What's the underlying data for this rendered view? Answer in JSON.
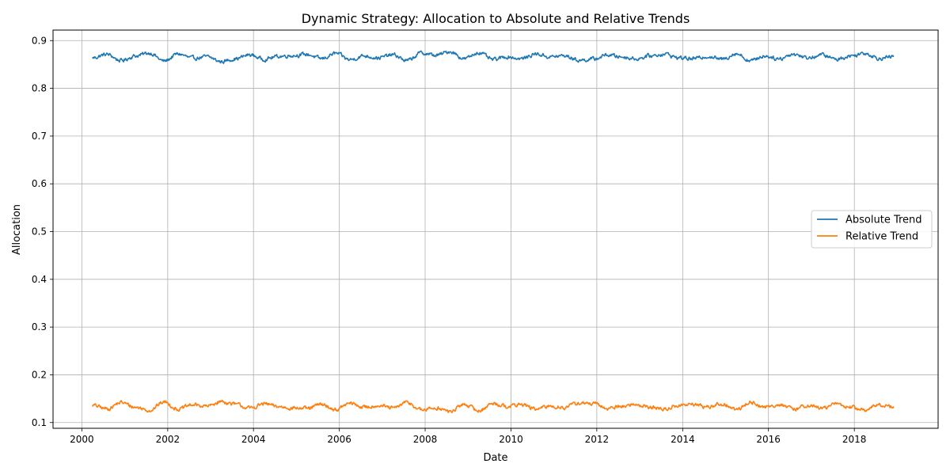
{
  "chart_data": {
    "type": "line",
    "title": "Dynamic Strategy: Allocation to Absolute and Relative Trends",
    "xlabel": "Date",
    "ylabel": "Allocation",
    "x_range": [
      "2000-04-01",
      "2019-01-01"
    ],
    "xlim": [
      "1999-05-01",
      "2019-12-15"
    ],
    "ylim": [
      0.088,
      0.922
    ],
    "x_ticks": [
      "2000",
      "2002",
      "2004",
      "2006",
      "2008",
      "2010",
      "2012",
      "2014",
      "2016",
      "2018"
    ],
    "y_ticks": [
      "0.1",
      "0.2",
      "0.3",
      "0.4",
      "0.5",
      "0.6",
      "0.7",
      "0.8",
      "0.9"
    ],
    "grid": true,
    "legend_position": "center-right",
    "series": [
      {
        "name": "Absolute Trend",
        "color": "#1f77b4",
        "x": [
          "2000-04",
          "2000-08",
          "2000-12",
          "2001-04",
          "2001-08",
          "2001-12",
          "2002-04",
          "2002-08",
          "2002-12",
          "2003-04",
          "2003-08",
          "2003-12",
          "2004-04",
          "2004-08",
          "2004-12",
          "2005-04",
          "2005-08",
          "2005-12",
          "2006-04",
          "2006-08",
          "2006-12",
          "2007-04",
          "2007-08",
          "2007-12",
          "2008-04",
          "2008-08",
          "2008-12",
          "2009-04",
          "2009-08",
          "2009-12",
          "2010-04",
          "2010-08",
          "2010-12",
          "2011-04",
          "2011-08",
          "2011-12",
          "2012-04",
          "2012-08",
          "2012-12",
          "2013-04",
          "2013-08",
          "2013-12",
          "2014-04",
          "2014-08",
          "2014-12",
          "2015-04",
          "2015-08",
          "2015-12",
          "2016-04",
          "2016-08",
          "2016-12",
          "2017-04",
          "2017-08",
          "2017-12",
          "2018-04",
          "2018-08",
          "2018-12"
        ],
        "values": [
          0.864,
          0.871,
          0.858,
          0.868,
          0.874,
          0.857,
          0.872,
          0.863,
          0.866,
          0.856,
          0.862,
          0.87,
          0.861,
          0.867,
          0.869,
          0.871,
          0.862,
          0.873,
          0.86,
          0.868,
          0.864,
          0.87,
          0.858,
          0.874,
          0.869,
          0.877,
          0.862,
          0.875,
          0.86,
          0.866,
          0.862,
          0.872,
          0.866,
          0.868,
          0.859,
          0.861,
          0.87,
          0.866,
          0.862,
          0.868,
          0.872,
          0.864,
          0.862,
          0.867,
          0.861,
          0.873,
          0.858,
          0.868,
          0.862,
          0.872,
          0.864,
          0.87,
          0.861,
          0.868,
          0.874,
          0.863,
          0.866
        ]
      },
      {
        "name": "Relative Trend",
        "color": "#ff7f0e",
        "x": [
          "2000-04",
          "2000-08",
          "2000-12",
          "2001-04",
          "2001-08",
          "2001-12",
          "2002-04",
          "2002-08",
          "2002-12",
          "2003-04",
          "2003-08",
          "2003-12",
          "2004-04",
          "2004-08",
          "2004-12",
          "2005-04",
          "2005-08",
          "2005-12",
          "2006-04",
          "2006-08",
          "2006-12",
          "2007-04",
          "2007-08",
          "2007-12",
          "2008-04",
          "2008-08",
          "2008-12",
          "2009-04",
          "2009-08",
          "2009-12",
          "2010-04",
          "2010-08",
          "2010-12",
          "2011-04",
          "2011-08",
          "2011-12",
          "2012-04",
          "2012-08",
          "2012-12",
          "2013-04",
          "2013-08",
          "2013-12",
          "2014-04",
          "2014-08",
          "2014-12",
          "2015-04",
          "2015-08",
          "2015-12",
          "2016-04",
          "2016-08",
          "2016-12",
          "2017-04",
          "2017-08",
          "2017-12",
          "2018-04",
          "2018-08",
          "2018-12"
        ],
        "values": [
          0.136,
          0.129,
          0.142,
          0.132,
          0.126,
          0.143,
          0.128,
          0.137,
          0.134,
          0.144,
          0.138,
          0.13,
          0.139,
          0.133,
          0.131,
          0.129,
          0.138,
          0.127,
          0.14,
          0.132,
          0.136,
          0.13,
          0.142,
          0.126,
          0.131,
          0.123,
          0.138,
          0.125,
          0.14,
          0.134,
          0.138,
          0.128,
          0.134,
          0.132,
          0.141,
          0.139,
          0.13,
          0.134,
          0.138,
          0.132,
          0.128,
          0.136,
          0.138,
          0.133,
          0.139,
          0.127,
          0.142,
          0.132,
          0.138,
          0.128,
          0.136,
          0.13,
          0.139,
          0.132,
          0.126,
          0.137,
          0.134
        ]
      }
    ]
  }
}
